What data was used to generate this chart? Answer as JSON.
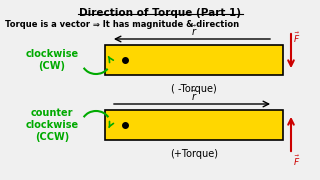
{
  "title": "Direction of Torque (Part 1)",
  "subtitle": "Torque is a vector ⇒ It has magnitude & direction",
  "bg_color": "#f0f0f0",
  "yellow_color": "#FFD700",
  "bar_outline": "#000000",
  "green_color": "#00aa00",
  "red_color": "#cc0000",
  "cw_label": "clockwise\n(CW)",
  "ccw_label": "counter\nclockwise\n(CCW)",
  "neg_torque_label": "( -Torque)",
  "pos_torque_label": "(+Torque)"
}
